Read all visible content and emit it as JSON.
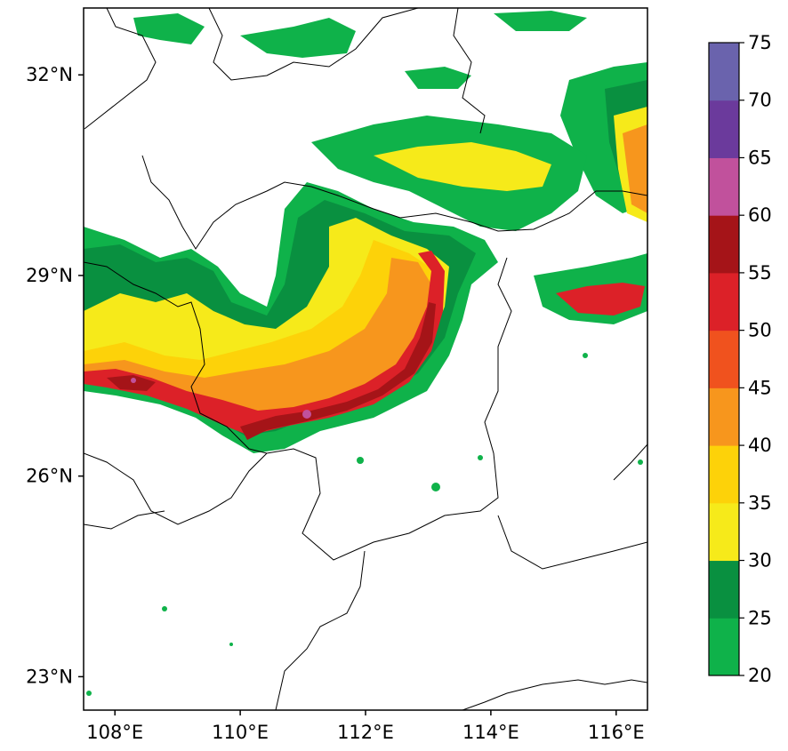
{
  "map": {
    "lon_range": [
      107.5,
      116.5
    ],
    "lat_range": [
      22.5,
      33.0
    ],
    "lat_ticks": [
      {
        "value": 32,
        "label": "32°N"
      },
      {
        "value": 29,
        "label": "29°N"
      },
      {
        "value": 26,
        "label": "26°N"
      },
      {
        "value": 23,
        "label": "23°N"
      }
    ],
    "lon_ticks": [
      {
        "value": 108,
        "label": "108°E"
      },
      {
        "value": 110,
        "label": "110°E"
      },
      {
        "value": 112,
        "label": "112°E"
      },
      {
        "value": 114,
        "label": "114°E"
      },
      {
        "value": 116,
        "label": "116°E"
      }
    ]
  },
  "colorbar": {
    "levels": [
      20,
      25,
      30,
      35,
      40,
      45,
      50,
      55,
      60,
      65,
      70,
      75
    ],
    "labels": [
      "20",
      "25",
      "30",
      "35",
      "40",
      "45",
      "50",
      "55",
      "60",
      "65",
      "70",
      "75"
    ],
    "colors": [
      "#0fb24a",
      "#099040",
      "#f6ea1a",
      "#fdd209",
      "#f7961d",
      "#f0521e",
      "#dc2128",
      "#a51418",
      "#c1519c",
      "#6b3a9c",
      "#6a63ad"
    ]
  },
  "colors": {
    "background": "#ffffff",
    "border": "#000000"
  }
}
